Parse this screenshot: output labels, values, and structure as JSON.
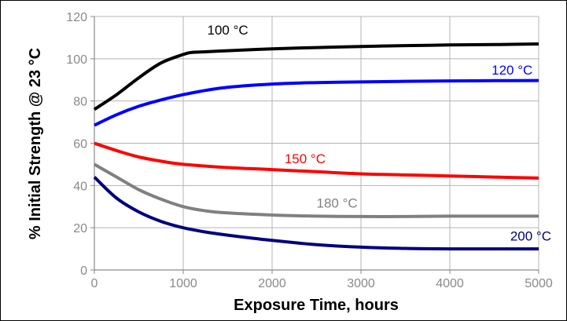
{
  "chart_data": {
    "type": "line",
    "title": "",
    "xlabel": "Exposure Time, hours",
    "ylabel": "% Initial Strength @ 23 °C",
    "xlim": [
      0,
      5000
    ],
    "ylim": [
      0,
      120
    ],
    "xticks": [
      0,
      1000,
      2000,
      3000,
      4000,
      5000
    ],
    "yticks": [
      0,
      20,
      40,
      60,
      80,
      100,
      120
    ],
    "grid": true,
    "legend": "none",
    "series": [
      {
        "name": "100 °C",
        "color": "#000000",
        "x": [
          0,
          250,
          500,
          750,
          1000,
          1100,
          1250,
          1500,
          2000,
          2500,
          3000,
          3500,
          4000,
          4500,
          5000
        ],
        "y": [
          76,
          83,
          91,
          98,
          102,
          103,
          103.3,
          103.8,
          104.7,
          105.3,
          105.8,
          106.2,
          106.5,
          106.7,
          107
        ]
      },
      {
        "name": "120 °C",
        "color": "#0000ff",
        "x": [
          0,
          250,
          500,
          750,
          1000,
          1250,
          1500,
          2000,
          2500,
          3000,
          3500,
          4000,
          4500,
          5000
        ],
        "y": [
          68.5,
          73.5,
          77.5,
          80.5,
          83,
          85,
          86.5,
          88,
          88.7,
          89,
          89.3,
          89.5,
          89.6,
          89.7
        ]
      },
      {
        "name": "150 °C",
        "color": "#ff0000",
        "x": [
          0,
          250,
          500,
          750,
          1000,
          1500,
          2000,
          2500,
          3000,
          3500,
          4000,
          4500,
          5000
        ],
        "y": [
          60,
          56.5,
          53.5,
          51.5,
          50,
          48.5,
          47.5,
          46.5,
          45.5,
          45,
          44.5,
          44,
          43.5
        ]
      },
      {
        "name": "180 °C",
        "color": "#808080",
        "x": [
          0,
          250,
          500,
          750,
          1000,
          1250,
          1500,
          2000,
          2500,
          3000,
          3500,
          4000,
          4500,
          5000
        ],
        "y": [
          50,
          44,
          38,
          33.5,
          30,
          28,
          27,
          26,
          25.5,
          25.3,
          25.3,
          25.5,
          25.5,
          25.5
        ]
      },
      {
        "name": "200 °C",
        "color": "#000080",
        "x": [
          0,
          250,
          500,
          750,
          1000,
          1250,
          1500,
          2000,
          2500,
          3000,
          3500,
          4000,
          4500,
          5000
        ],
        "y": [
          44,
          34,
          27.5,
          23,
          20,
          18,
          16.5,
          14,
          12,
          10.8,
          10.2,
          10,
          10,
          10
        ]
      }
    ],
    "annotations": [
      {
        "text": "100 °C",
        "series": 0
      },
      {
        "text": "120 °C",
        "series": 1
      },
      {
        "text": "150 °C",
        "series": 2
      },
      {
        "text": "180 °C",
        "series": 3
      },
      {
        "text": "200 °C",
        "series": 4
      }
    ]
  }
}
